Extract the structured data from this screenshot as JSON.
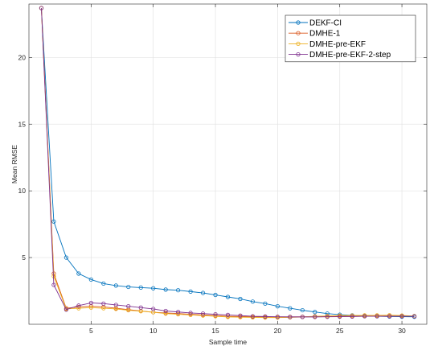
{
  "chart_data": {
    "type": "line",
    "title": "",
    "xlabel": "Sample time",
    "ylabel": "Mean RMSE",
    "xlim": [
      0,
      32
    ],
    "ylim": [
      0,
      24
    ],
    "xticks": [
      5,
      10,
      15,
      20,
      25,
      30
    ],
    "yticks": [
      5,
      10,
      15,
      20
    ],
    "grid": true,
    "legend_position": "top-right",
    "x": [
      1,
      2,
      3,
      4,
      5,
      6,
      7,
      8,
      9,
      10,
      11,
      12,
      13,
      14,
      15,
      16,
      17,
      18,
      19,
      20,
      21,
      22,
      23,
      24,
      25,
      26,
      27,
      28,
      29,
      30,
      31
    ],
    "series": [
      {
        "name": "DEKF-CI",
        "color": "#0072BD",
        "values": [
          23.7,
          7.7,
          5.0,
          3.8,
          3.35,
          3.05,
          2.9,
          2.8,
          2.75,
          2.7,
          2.6,
          2.55,
          2.45,
          2.35,
          2.2,
          2.05,
          1.9,
          1.7,
          1.55,
          1.35,
          1.2,
          1.05,
          0.92,
          0.8,
          0.72,
          0.67,
          0.63,
          0.6,
          0.58,
          0.57,
          0.56
        ]
      },
      {
        "name": "DMHE-1",
        "color": "#D95319",
        "values": [
          23.7,
          3.8,
          1.2,
          1.3,
          1.35,
          1.3,
          1.2,
          1.1,
          1.0,
          0.9,
          0.85,
          0.8,
          0.75,
          0.7,
          0.65,
          0.6,
          0.58,
          0.56,
          0.55,
          0.55,
          0.55,
          0.56,
          0.57,
          0.58,
          0.6,
          0.6,
          0.61,
          0.62,
          0.62,
          0.62,
          0.6
        ]
      },
      {
        "name": "DMHE-pre-EKF",
        "color": "#EDB120",
        "values": [
          23.7,
          3.6,
          1.15,
          1.2,
          1.25,
          1.2,
          1.15,
          1.05,
          0.98,
          0.9,
          0.8,
          0.75,
          0.7,
          0.65,
          0.6,
          0.55,
          0.53,
          0.52,
          0.5,
          0.5,
          0.52,
          0.55,
          0.6,
          0.62,
          0.65,
          0.66,
          0.67,
          0.67,
          0.68,
          0.66,
          0.62
        ]
      },
      {
        "name": "DMHE-pre-EKF-2-step",
        "color": "#7E2F8E",
        "values": [
          23.7,
          2.95,
          1.1,
          1.4,
          1.6,
          1.55,
          1.45,
          1.35,
          1.25,
          1.15,
          1.0,
          0.92,
          0.85,
          0.8,
          0.75,
          0.7,
          0.65,
          0.6,
          0.58,
          0.56,
          0.55,
          0.55,
          0.55,
          0.56,
          0.57,
          0.58,
          0.6,
          0.6,
          0.6,
          0.6,
          0.6
        ]
      }
    ]
  }
}
